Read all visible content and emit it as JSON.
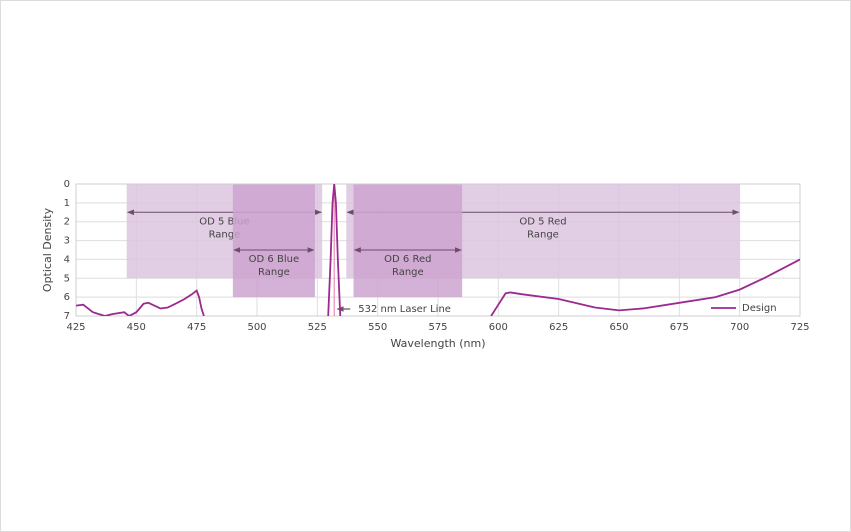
{
  "chart_data": {
    "type": "line",
    "x_label": "Wavelength (nm)",
    "y_label": "Optical Density",
    "xlim": [
      425,
      725
    ],
    "xticks": [
      425,
      450,
      475,
      500,
      525,
      550,
      575,
      600,
      625,
      650,
      675,
      700,
      725
    ],
    "ylim": [
      0,
      7
    ],
    "y_reversed": true,
    "yticks": [
      0,
      1,
      2,
      3,
      4,
      5,
      6,
      7
    ],
    "grid": true,
    "legend": "bottom-right",
    "series": [
      {
        "name": "Design",
        "color": "#9b2a8f",
        "x": [
          425,
          428,
          432,
          437,
          440,
          445,
          447,
          450,
          453,
          455,
          460,
          463,
          467,
          470,
          473,
          475,
          476,
          477,
          478,
          null,
          529.5,
          530.5,
          531.3,
          532,
          532.7,
          533.5,
          534.5,
          null,
          597,
          600,
          603,
          605,
          610,
          625,
          640,
          650,
          660,
          675,
          690,
          700,
          710,
          725
        ],
        "values": [
          6.45,
          6.4,
          6.8,
          7,
          6.9,
          6.8,
          7,
          6.8,
          6.35,
          6.3,
          6.6,
          6.55,
          6.3,
          6.1,
          5.85,
          5.65,
          6.0,
          6.6,
          7,
          null,
          7,
          4,
          1,
          0,
          1,
          4,
          7,
          null,
          7,
          6.4,
          5.8,
          5.75,
          5.85,
          6.1,
          6.55,
          6.7,
          6.6,
          6.3,
          6.0,
          5.6,
          5.0,
          4.0
        ]
      }
    ],
    "regions": [
      {
        "label": [
          "OD 5 Blue",
          "Range"
        ],
        "start": 446,
        "end": 527,
        "depth": 5,
        "color": "#dcc4df"
      },
      {
        "label": [
          "OD 5 Red",
          "Range"
        ],
        "start": 537,
        "end": 700,
        "depth": 5,
        "color": "#dcc4df"
      },
      {
        "label": [
          "OD 6 Blue",
          "Range"
        ],
        "start": 490,
        "end": 524,
        "depth": 6,
        "color": "#cda3cf"
      },
      {
        "label": [
          "OD 6 Red",
          "Range"
        ],
        "start": 540,
        "end": 585,
        "depth": 6,
        "color": "#cda3cf"
      }
    ],
    "laser_line": {
      "text": "532 nm Laser Line",
      "x": 532,
      "color": "#e88fb8"
    }
  }
}
